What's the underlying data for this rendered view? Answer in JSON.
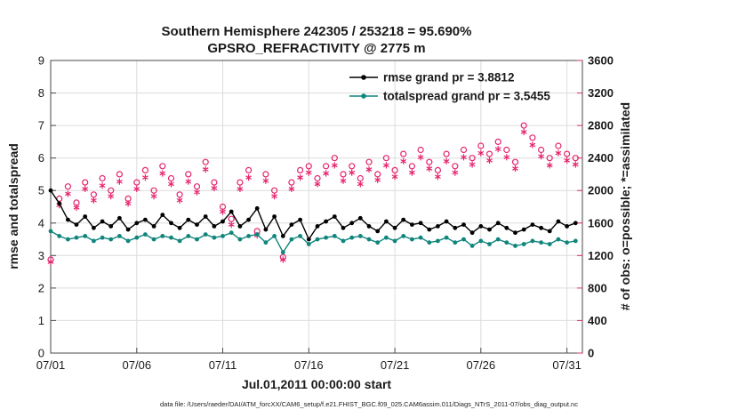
{
  "chart_data": {
    "type": "line",
    "title": "Southern Hemisphere 242305 / 253218 = 95.690%",
    "subtitle": "GPSRO_REFRACTIVITY @ 2775 m",
    "xlabel": "Jul.01,2011 00:00:00 start",
    "ylabel_left": "rmse and totalspread",
    "ylabel_right": "# of obs: o=possible; *=assimilated",
    "caption": "data file: /Users/raeder/DAI/ATM_forcXX/CAM6_setup/f.e21.FHIST_BGC.f09_025.CAM6assim.011/Diags_NTrS_2011-07/obs_diag_output.nc",
    "xlim": [
      1,
      31.9
    ],
    "ylim_left": [
      0,
      9
    ],
    "ylim_right": [
      0,
      3600
    ],
    "x_ticks": [
      "07/01",
      "07/06",
      "07/11",
      "07/16",
      "07/21",
      "07/26",
      "07/31"
    ],
    "x_tick_days": [
      1,
      6,
      11,
      16,
      21,
      26,
      31
    ],
    "y_ticks_left": [
      0,
      1,
      2,
      3,
      4,
      5,
      6,
      7,
      8,
      9
    ],
    "y_ticks_right": [
      0,
      400,
      800,
      1200,
      1600,
      2000,
      2400,
      2800,
      3200,
      3600
    ],
    "grid": true,
    "legend_position": "top-center-inside",
    "legend_text_color": "#0044ff",
    "colors": {
      "axis": "#4a4a4a",
      "grid": "#dcdcdc",
      "right_axis": "#e5246e",
      "rmse": "#000000",
      "totalspread": "#0f857c"
    },
    "legend": [
      {
        "label": "rmse grand pr = 3.8812",
        "color": "#000000"
      },
      {
        "label": "totalspread grand pr = 3.5455",
        "color": "#0f857c"
      }
    ],
    "x": [
      1,
      1.5,
      2,
      2.5,
      3,
      3.5,
      4,
      4.5,
      5,
      5.5,
      6,
      6.5,
      7,
      7.5,
      8,
      8.5,
      9,
      9.5,
      10,
      10.5,
      11,
      11.5,
      12,
      12.5,
      13,
      13.5,
      14,
      14.5,
      15,
      15.5,
      16,
      16.5,
      17,
      17.5,
      18,
      18.5,
      19,
      19.5,
      20,
      20.5,
      21,
      21.5,
      22,
      22.5,
      23,
      23.5,
      24,
      24.5,
      25,
      25.5,
      26,
      26.5,
      27,
      27.5,
      28,
      28.5,
      29,
      29.5,
      30,
      30.5,
      31,
      31.5
    ],
    "series": [
      {
        "name": "rmse",
        "style": "line-dot",
        "axis": "left",
        "color": "#000000",
        "values": [
          5.0,
          4.6,
          4.1,
          3.95,
          4.2,
          3.85,
          4.05,
          3.9,
          4.15,
          3.8,
          4.0,
          4.1,
          3.9,
          4.25,
          4.0,
          3.85,
          4.1,
          3.95,
          4.2,
          3.9,
          4.05,
          4.35,
          3.9,
          4.1,
          4.45,
          3.8,
          4.2,
          3.6,
          3.95,
          4.1,
          3.5,
          3.9,
          4.05,
          4.2,
          3.85,
          4.0,
          4.15,
          3.9,
          3.75,
          4.05,
          3.85,
          4.1,
          3.95,
          4.0,
          3.8,
          3.9,
          4.05,
          3.85,
          3.95,
          3.7,
          3.9,
          3.8,
          4.0,
          3.85,
          3.7,
          3.8,
          3.95,
          3.85,
          3.75,
          4.05,
          3.9,
          4.0
        ]
      },
      {
        "name": "totalspread",
        "style": "line-dot",
        "axis": "left",
        "color": "#0f857c",
        "values": [
          3.75,
          3.6,
          3.5,
          3.55,
          3.6,
          3.45,
          3.55,
          3.5,
          3.6,
          3.45,
          3.55,
          3.65,
          3.5,
          3.6,
          3.55,
          3.45,
          3.6,
          3.5,
          3.65,
          3.55,
          3.6,
          3.7,
          3.5,
          3.6,
          3.65,
          3.4,
          3.6,
          3.1,
          3.5,
          3.6,
          3.35,
          3.5,
          3.55,
          3.6,
          3.45,
          3.55,
          3.6,
          3.5,
          3.4,
          3.55,
          3.45,
          3.6,
          3.5,
          3.55,
          3.4,
          3.45,
          3.55,
          3.4,
          3.5,
          3.3,
          3.45,
          3.35,
          3.5,
          3.4,
          3.3,
          3.35,
          3.45,
          3.4,
          3.35,
          3.5,
          3.4,
          3.45
        ]
      },
      {
        "name": "possible",
        "style": "open-circle",
        "axis": "right",
        "color": "#e5246e",
        "values": [
          1150,
          1900,
          2050,
          1850,
          2100,
          1950,
          2150,
          2000,
          2200,
          1900,
          2100,
          2250,
          2000,
          2300,
          2150,
          1950,
          2200,
          2050,
          2350,
          2100,
          1800,
          1650,
          2100,
          2250,
          1500,
          2200,
          2000,
          1180,
          2100,
          2250,
          2300,
          2150,
          2300,
          2400,
          2200,
          2300,
          2150,
          2350,
          2200,
          2400,
          2250,
          2450,
          2300,
          2500,
          2350,
          2250,
          2450,
          2300,
          2500,
          2400,
          2550,
          2450,
          2600,
          2500,
          2350,
          2800,
          2650,
          2500,
          2400,
          2550,
          2450,
          2400
        ]
      },
      {
        "name": "assimilated",
        "style": "asterisk",
        "axis": "right",
        "color": "#e5246e",
        "values": [
          1120,
          1820,
          1960,
          1790,
          2020,
          1880,
          2060,
          1930,
          2110,
          1840,
          2020,
          2160,
          1930,
          2210,
          2080,
          1880,
          2110,
          1980,
          2260,
          2030,
          1740,
          1580,
          2020,
          2160,
          1450,
          2120,
          1930,
          1150,
          2020,
          2160,
          2220,
          2080,
          2210,
          2310,
          2120,
          2220,
          2080,
          2260,
          2130,
          2310,
          2170,
          2360,
          2220,
          2410,
          2270,
          2170,
          2360,
          2220,
          2410,
          2320,
          2460,
          2370,
          2510,
          2410,
          2270,
          2720,
          2560,
          2420,
          2310,
          2460,
          2370,
          2320
        ]
      }
    ]
  }
}
